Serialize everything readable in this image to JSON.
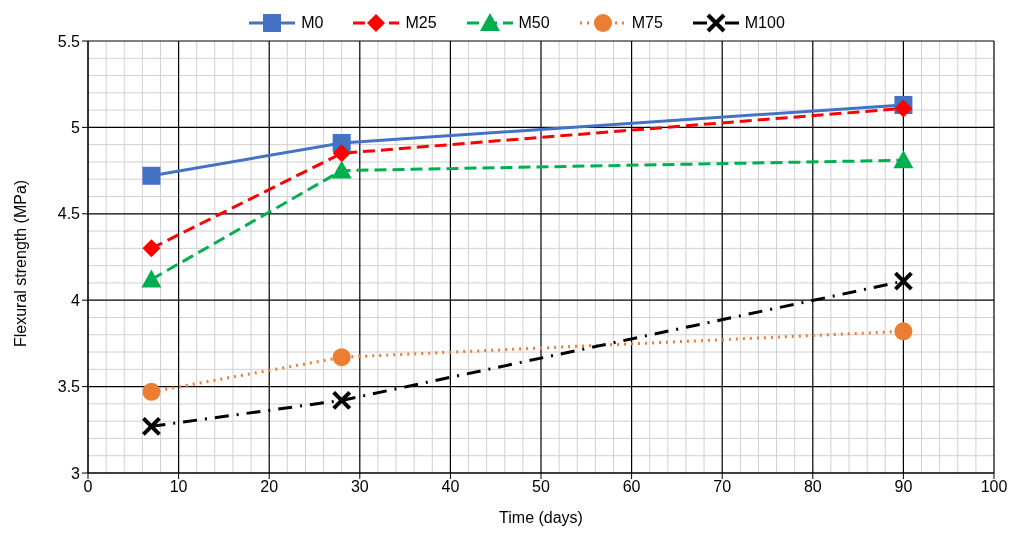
{
  "chart_data": {
    "type": "line",
    "xlabel": "Time (days)",
    "ylabel": "Flexural strength (MPa)",
    "x": [
      7,
      28,
      90
    ],
    "series": [
      {
        "name": "M0",
        "color": "#4472c4",
        "values": [
          4.72,
          4.91,
          5.13
        ],
        "marker": "square",
        "line_style": "solid"
      },
      {
        "name": "M25",
        "color": "#ff0000",
        "values": [
          4.3,
          4.85,
          5.11
        ],
        "marker": "diamond",
        "line_style": "dashed"
      },
      {
        "name": "M50",
        "color": "#00b050",
        "values": [
          4.12,
          4.75,
          4.81
        ],
        "marker": "triangle",
        "line_style": "dashed"
      },
      {
        "name": "M75",
        "color": "#ed7d31",
        "values": [
          3.47,
          3.67,
          3.82
        ],
        "marker": "circle",
        "line_style": "dotted"
      },
      {
        "name": "M100",
        "color": "#000000",
        "values": [
          3.27,
          3.42,
          4.11
        ],
        "marker": "cross",
        "line_style": "dashdot"
      }
    ],
    "xlim": [
      0,
      100
    ],
    "xticks": [
      0,
      10,
      20,
      30,
      40,
      50,
      60,
      70,
      80,
      90,
      100
    ],
    "ylim": [
      3,
      5.5
    ],
    "yticks": [
      3,
      3.5,
      4,
      4.5,
      5,
      5.5
    ],
    "grid": true,
    "legend": "top"
  }
}
